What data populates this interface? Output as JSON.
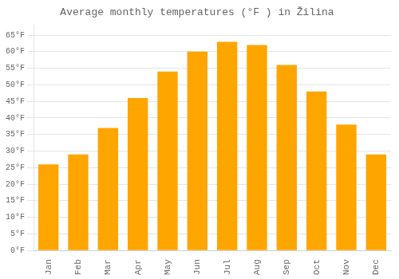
{
  "chart_data": {
    "type": "bar",
    "title": "Average monthly temperatures (°F ) in Žilina",
    "categories": [
      "Jan",
      "Feb",
      "Mar",
      "Apr",
      "May",
      "Jun",
      "Jul",
      "Aug",
      "Sep",
      "Oct",
      "Nov",
      "Dec"
    ],
    "values": [
      26,
      29,
      37,
      46,
      54,
      60,
      63,
      62,
      56,
      48,
      38,
      29
    ],
    "color": "#FFA500",
    "ylim": [
      0,
      68
    ],
    "yticks": [
      {
        "value": 0,
        "label": "0°F"
      },
      {
        "value": 5,
        "label": "5°F"
      },
      {
        "value": 10,
        "label": "10°F"
      },
      {
        "value": 15,
        "label": "15°F"
      },
      {
        "value": 20,
        "label": "20°F"
      },
      {
        "value": 25,
        "label": "25°F"
      },
      {
        "value": 30,
        "label": "30°F"
      },
      {
        "value": 35,
        "label": "35°F"
      },
      {
        "value": 40,
        "label": "40°F"
      },
      {
        "value": 45,
        "label": "45°F"
      },
      {
        "value": 50,
        "label": "50°F"
      },
      {
        "value": 55,
        "label": "55°F"
      },
      {
        "value": 60,
        "label": "60°F"
      },
      {
        "value": 65,
        "label": "65°F"
      }
    ],
    "grid": true
  }
}
